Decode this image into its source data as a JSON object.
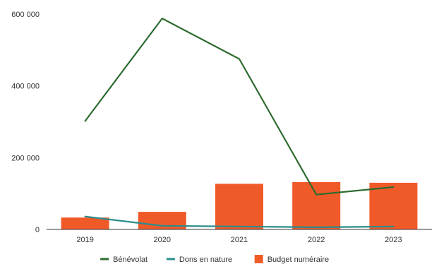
{
  "chart_data": {
    "type": "bar",
    "categories": [
      "2019",
      "2020",
      "2021",
      "2022",
      "2023"
    ],
    "ylim": [
      0,
      600000
    ],
    "y_ticks": [
      0,
      200000,
      400000,
      600000
    ],
    "y_tick_labels": [
      "0",
      "200 000",
      "400 000",
      "600 000"
    ],
    "grid": false,
    "legend_position": "bottom",
    "series": [
      {
        "name": "Bénévolat",
        "type": "line",
        "color": "#2e6b2e",
        "values": [
          302000,
          588000,
          475000,
          97000,
          118000
        ]
      },
      {
        "name": "Dons en nature",
        "type": "line",
        "color": "#2a8c8c",
        "values": [
          36000,
          10000,
          8000,
          6000,
          8000
        ]
      },
      {
        "name": "Budget numéraire",
        "type": "bar",
        "color": "#f05a28",
        "values": [
          33000,
          49000,
          127000,
          132000,
          130000
        ]
      }
    ]
  }
}
